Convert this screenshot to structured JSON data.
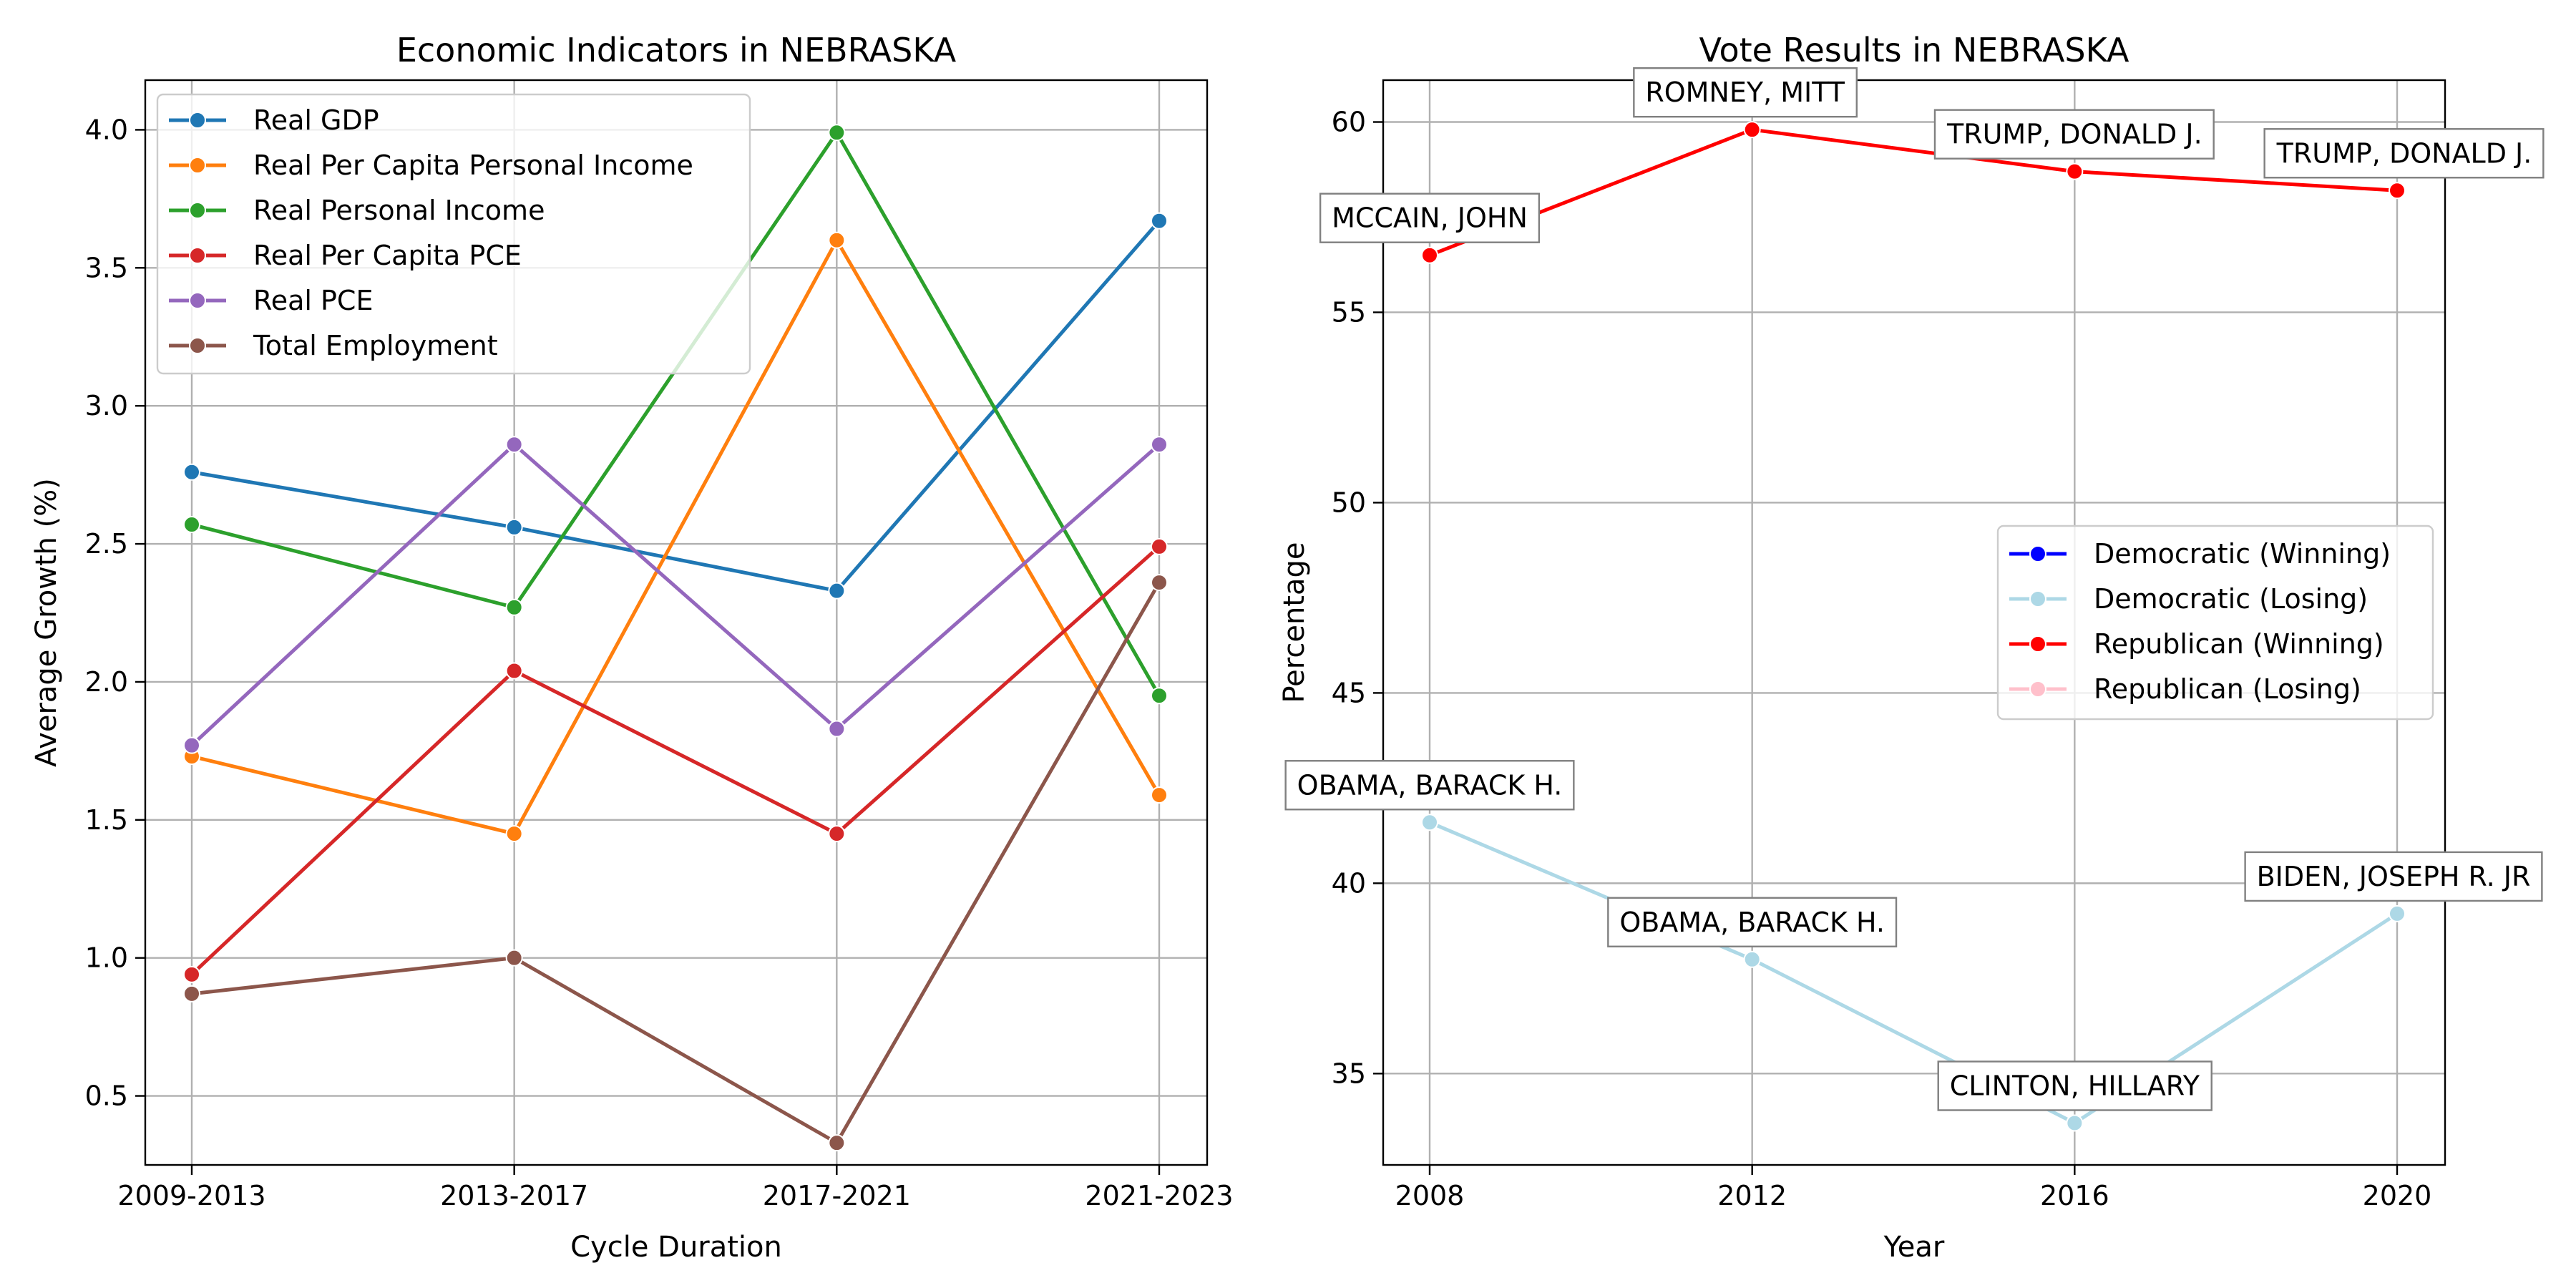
{
  "chart_data": [
    {
      "type": "line",
      "title": "Economic Indicators in NEBRASKA",
      "xlabel": "Cycle Duration",
      "ylabel": "Average Growth (%)",
      "categories": [
        "2009-2013",
        "2013-2017",
        "2017-2021",
        "2021-2023"
      ],
      "ylim": [
        0.25,
        4.18
      ],
      "yticks": [
        "0.5",
        "1.0",
        "1.5",
        "2.0",
        "2.5",
        "3.0",
        "3.5",
        "4.0"
      ],
      "grid": true,
      "legend_position": "upper-left",
      "series": [
        {
          "name": "Real GDP",
          "color": "#1f77b4",
          "values": [
            2.76,
            2.56,
            2.33,
            3.67
          ]
        },
        {
          "name": "Real Per Capita Personal Income",
          "color": "#ff7f0e",
          "values": [
            1.73,
            1.45,
            3.6,
            1.59
          ]
        },
        {
          "name": "Real Personal Income",
          "color": "#2ca02c",
          "values": [
            2.57,
            2.27,
            3.99,
            1.95
          ]
        },
        {
          "name": "Real Per Capita PCE",
          "color": "#d62728",
          "values": [
            0.94,
            2.04,
            1.45,
            2.49
          ]
        },
        {
          "name": "Real PCE",
          "color": "#9467bd",
          "values": [
            1.77,
            2.86,
            1.83,
            2.86
          ]
        },
        {
          "name": "Total Employment",
          "color": "#8c564b",
          "values": [
            0.87,
            1.0,
            0.33,
            2.36
          ]
        }
      ]
    },
    {
      "type": "line",
      "title": "Vote Results in NEBRASKA",
      "xlabel": "Year",
      "ylabel": "Percentage",
      "x": [
        2008,
        2012,
        2016,
        2020
      ],
      "xticks": [
        "2008",
        "2012",
        "2016",
        "2020"
      ],
      "ylim": [
        32.6,
        61.1
      ],
      "yticks": [
        "35",
        "40",
        "45",
        "50",
        "55",
        "60"
      ],
      "grid": true,
      "legend_position": "center-right",
      "legend": [
        {
          "name": "Democratic (Winning)",
          "color": "#0000ff"
        },
        {
          "name": "Democratic (Losing)",
          "color": "#add8e6"
        },
        {
          "name": "Republican (Winning)",
          "color": "#ff0000"
        },
        {
          "name": "Republican (Losing)",
          "color": "#ffc0cb"
        }
      ],
      "series": [
        {
          "color": "#ff0000",
          "values": [
            56.5,
            59.8,
            58.7,
            58.2
          ],
          "labels": [
            "MCCAIN, JOHN",
            "ROMNEY, MITT",
            "TRUMP, DONALD J.",
            "TRUMP, DONALD J."
          ]
        },
        {
          "color": "#add8e6",
          "values": [
            41.6,
            38.0,
            33.7,
            39.2
          ],
          "labels": [
            "OBAMA, BARACK H.",
            "OBAMA, BARACK H.",
            "CLINTON, HILLARY",
            "BIDEN, JOSEPH R. JR"
          ]
        }
      ]
    }
  ]
}
